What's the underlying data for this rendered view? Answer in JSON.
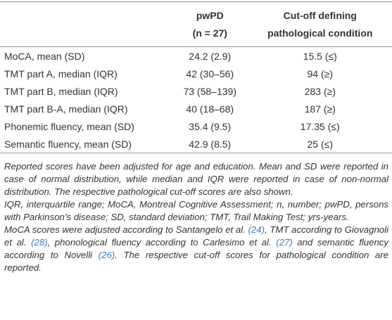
{
  "table": {
    "header": [
      [
        "pwPD",
        "(n = 27)"
      ],
      [
        "Cut-off defining",
        "pathological condition"
      ]
    ],
    "rows": [
      [
        "MoCA, mean (SD)",
        "24.2 (2.9)",
        "15.5 (≤)"
      ],
      [
        "TMT part A, median (IQR)",
        "42 (30–56)",
        "94 (≥)"
      ],
      [
        "TMT part B, median (IQR)",
        "73 (58–139)",
        "283 (≥)"
      ],
      [
        "TMT part B-A, median (IQR)",
        "40 (18–68)",
        "187 (≥)"
      ],
      [
        "Phonemic fluency, mean (SD)",
        "35.4 (9.5)",
        "17.35 (≤)"
      ],
      [
        "Semantic fluency, mean (SD)",
        "42.9 (8.5)",
        "25 (≤)"
      ]
    ]
  },
  "notes": [
    [
      "Reported scores have been adjusted for age and education. Mean and SD were reported in case of normal distribution, while median and IQR were reported in case of non-normal distribution. The respective pathological cut-off scores are also shown."
    ],
    [
      "IQR, interquartile range; MoCA, Montreal Cognitive Assessment; n, number; pwPD, persons with Parkinson’s disease; SD, standard deviation; TMT, Trail Making Test; yrs-years."
    ],
    [
      "MoCA scores were adjusted according to Santangelo et al. ",
      "(24)",
      ", TMT according to Giovagnoli et al. ",
      "(28)",
      ", phonological fluency according to Carlesimo et al. ",
      "(27)",
      " and semantic fluency according to Novelli ",
      "(26)",
      ". The respective cut-off scores for pathological condition are reported."
    ]
  ]
}
